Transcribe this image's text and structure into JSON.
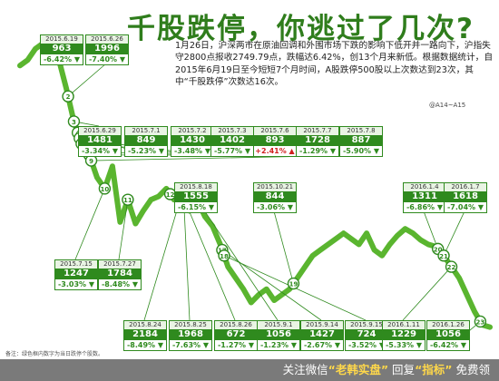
{
  "headline": "千股跌停，你逃过了几次?",
  "intro": "1月26日，沪深两市在原油回调和外围市场下跌的影响下低开并一路向下，沪指失守2800点报收2749.79点，跌幅达6.42%，创13个月来新低。根据数据统计，自2015年6月19日至今短短7个月时间，A股跌停500股以上次数达到23次，其中“千股跌停”次数达16次。",
  "page_ref": "@A14~A15",
  "footnote": "备注：绿色框内数字为当日跌停个股数。",
  "watermark": {
    "prefix": "关注微信",
    "account": "“老韩实盘”",
    "middle": "回复",
    "keyword": "“指标”",
    "suffix": "免费领"
  },
  "colors": {
    "title": "#2f7d1c",
    "line": "#5ab52f",
    "card": "#2f8a1e",
    "up": "#d02020"
  },
  "chart_data": {
    "type": "line",
    "title": "千股跌停，你逃过了几次?",
    "xlabel": "",
    "ylabel": "",
    "grid": false,
    "legend": "none",
    "series": [
      {
        "name": "",
        "color": "#5ab52f",
        "x_range": [
          "2015-06-01",
          "2016-01-31"
        ],
        "values": [
          5100,
          5150,
          5250,
          5300,
          5200,
          5166,
          4900,
          4600,
          4400,
          4300,
          4100,
          4000,
          4200,
          3700,
          3900,
          3686,
          3800,
          3900,
          3930,
          4000,
          3900,
          3950,
          3800,
          3900,
          3750,
          3663,
          3500,
          3300,
          3200,
          3100,
          2980,
          3050,
          3100,
          3000,
          3050,
          3100,
          3200,
          3300,
          3400,
          3450,
          3500,
          3550,
          3600,
          3550,
          3500,
          3600,
          3450,
          3400,
          3500,
          3580,
          3640,
          3600,
          3540,
          3500,
          3480,
          3400,
          3300,
          3200,
          3050,
          2900,
          2780,
          2760
        ]
      }
    ],
    "markers": [
      {
        "n": "1",
        "date": "2015-06-19",
        "limit_down": 963,
        "change": "-6.42%",
        "dir": "down"
      },
      {
        "n": "2",
        "date": "2015-06-26",
        "limit_down": 1996,
        "change": "-7.40%",
        "dir": "down"
      },
      {
        "n": "3",
        "date": "2015-06-29",
        "limit_down": 1481,
        "change": "-3.34%",
        "dir": "down"
      },
      {
        "n": "4",
        "date": "2015-07-01",
        "limit_down": 849,
        "change": "-5.23%",
        "dir": "down"
      },
      {
        "n": "5",
        "date": "2015-07-02",
        "limit_down": 1430,
        "change": "-3.48%",
        "dir": "down"
      },
      {
        "n": "6",
        "date": "2015-07-03",
        "limit_down": 1402,
        "change": "-5.77%",
        "dir": "down"
      },
      {
        "n": "7",
        "date": "2015-07-06",
        "limit_down": 893,
        "change": "+2.41%",
        "dir": "up"
      },
      {
        "n": "8",
        "date": "2015-07-07",
        "limit_down": 1728,
        "change": "-1.29%",
        "dir": "down"
      },
      {
        "n": "9",
        "date": "2015-07-08",
        "limit_down": 887,
        "change": "-5.90%",
        "dir": "down"
      },
      {
        "n": "10",
        "date": "2015-07-15",
        "limit_down": 1247,
        "change": "-3.03%",
        "dir": "down"
      },
      {
        "n": "11",
        "date": "2015-07-27",
        "limit_down": 1784,
        "change": "-8.48%",
        "dir": "down"
      },
      {
        "n": "12",
        "date": "2015-08-18",
        "limit_down": 1555,
        "change": "-6.15%",
        "dir": "down"
      },
      {
        "n": "13",
        "date": "2015-08-24",
        "limit_down": 2184,
        "change": "-8.49%",
        "dir": "down"
      },
      {
        "n": "14",
        "date": "2015-08-25",
        "limit_down": 1968,
        "change": "-7.63%",
        "dir": "down"
      },
      {
        "n": "15",
        "date": "2015-08-26",
        "limit_down": 672,
        "change": "-1.27%",
        "dir": "down"
      },
      {
        "n": "16",
        "date": "2015-09-01",
        "limit_down": 1056,
        "change": "-1.23%",
        "dir": "down"
      },
      {
        "n": "17",
        "date": "2015-09-14",
        "limit_down": 1427,
        "change": "-2.67%",
        "dir": "down"
      },
      {
        "n": "18",
        "date": "2015-09-15",
        "limit_down": 724,
        "change": "-3.52%",
        "dir": "down"
      },
      {
        "n": "19",
        "date": "2015-10-21",
        "limit_down": 844,
        "change": "-3.06%",
        "dir": "down"
      },
      {
        "n": "20",
        "date": "2016-01-04",
        "limit_down": 1311,
        "change": "-6.86%",
        "dir": "down"
      },
      {
        "n": "21",
        "date": "2016-01-07",
        "limit_down": 1618,
        "change": "-7.04%",
        "dir": "down"
      },
      {
        "n": "22",
        "date": "2016-01-11",
        "limit_down": 1229,
        "change": "-5.33%",
        "dir": "down"
      },
      {
        "n": "23",
        "date": "2016-01-26",
        "limit_down": 1056,
        "change": "-6.42%",
        "dir": "down"
      }
    ]
  }
}
